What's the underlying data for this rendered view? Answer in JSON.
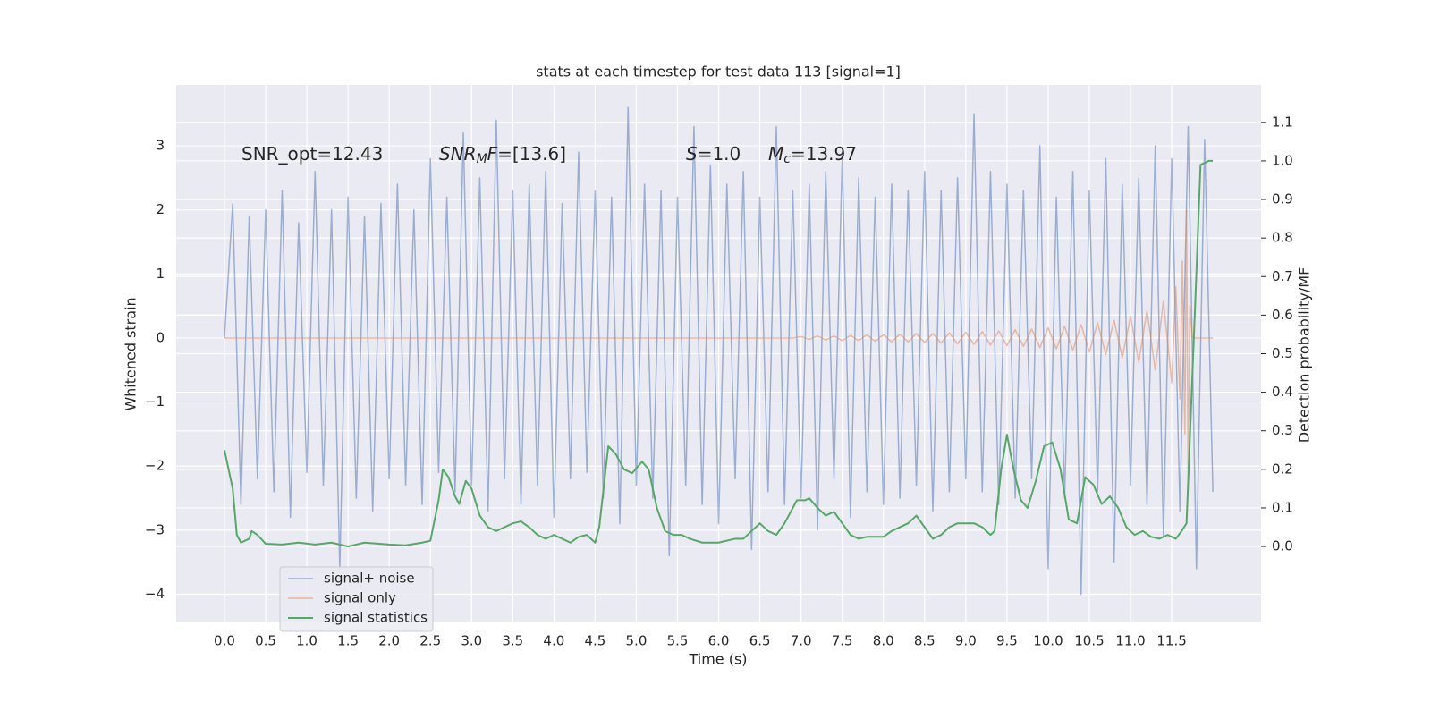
{
  "chart_data": {
    "type": "line",
    "title": "stats at each timestep for test data 113 [signal=1]",
    "xlabel": "Time (s)",
    "ylabel": "Whitened strain",
    "y2label": "Detection probability/MF",
    "xlim": [
      -0.586,
      12.585
    ],
    "ylim": [
      -4.44,
      3.95
    ],
    "y2lim": [
      -0.197,
      1.197
    ],
    "xticks": [
      {
        "value": 0,
        "label": "0.0"
      },
      0.5,
      {
        "value": 1,
        "label": "1.0"
      },
      1.5,
      {
        "value": 2,
        "label": "2.0"
      },
      2.5,
      {
        "value": 3,
        "label": "3.0"
      },
      3.5,
      {
        "value": 4,
        "label": "4.0"
      },
      4.5,
      {
        "value": 5,
        "label": "5.0"
      },
      5.5,
      {
        "value": 6,
        "label": "6.0"
      },
      6.5,
      {
        "value": 7,
        "label": "7.0"
      },
      7.5,
      {
        "value": 8,
        "label": "8.0"
      },
      8.5,
      {
        "value": 9,
        "label": "9.0"
      },
      9.5,
      {
        "value": 10,
        "label": "10.0"
      },
      10.5,
      {
        "value": 11,
        "label": "11.0"
      },
      11.5
    ],
    "yticks": [
      {
        "value": -4,
        "label": "−4"
      },
      {
        "value": -3,
        "label": "−3"
      },
      {
        "value": -2,
        "label": "−2"
      },
      {
        "value": -1,
        "label": "−1"
      },
      0,
      1,
      2,
      3
    ],
    "y2ticks": [
      {
        "value": 0,
        "label": "0.0"
      },
      0.1,
      0.2,
      0.3,
      0.4,
      0.5,
      0.6,
      0.7,
      0.8,
      0.9,
      {
        "value": 1,
        "label": "1.0"
      },
      1.1
    ],
    "grid": true,
    "legend": "lower left",
    "annotations": [
      [
        "SNR_opt=12.43"
      ],
      [
        "SNR",
        "M",
        "F",
        "=[13.6]"
      ],
      [
        "S",
        "=1.0"
      ],
      [
        "M",
        "c",
        "=13.97"
      ]
    ],
    "series": [
      {
        "name": "signal+ noise",
        "color": "#4c72b0",
        "alpha": 0.5,
        "x": [
          0,
          0.1,
          0.2,
          0.3,
          0.4,
          0.5,
          0.6,
          0.7,
          0.8,
          0.9,
          1,
          1.1,
          1.2,
          1.3,
          1.4,
          1.5,
          1.6,
          1.7,
          1.8,
          1.9,
          2,
          2.1,
          2.2,
          2.3,
          2.4,
          2.5,
          2.6,
          2.7,
          2.8,
          2.9,
          3,
          3.1,
          3.2,
          3.3,
          3.4,
          3.5,
          3.6,
          3.7,
          3.8,
          3.9,
          4,
          4.1,
          4.2,
          4.3,
          4.4,
          4.5,
          4.6,
          4.7,
          4.8,
          4.9,
          5,
          5.1,
          5.2,
          5.3,
          5.4,
          5.5,
          5.6,
          5.7,
          5.8,
          5.9,
          6,
          6.1,
          6.2,
          6.3,
          6.4,
          6.5,
          6.6,
          6.7,
          6.8,
          6.9,
          7,
          7.1,
          7.2,
          7.3,
          7.4,
          7.5,
          7.6,
          7.7,
          7.8,
          7.9,
          8,
          8.1,
          8.2,
          8.3,
          8.4,
          8.5,
          8.6,
          8.7,
          8.8,
          8.9,
          9,
          9.1,
          9.2,
          9.3,
          9.4,
          9.5,
          9.6,
          9.7,
          9.8,
          9.9,
          10,
          10.1,
          10.2,
          10.3,
          10.4,
          10.5,
          10.6,
          10.7,
          10.8,
          10.9,
          11,
          11.1,
          11.2,
          11.3,
          11.4,
          11.5,
          11.6,
          11.7,
          11.8,
          11.9,
          12
        ],
        "values": [
          0,
          2.1,
          -2.6,
          1.9,
          -2.2,
          2.0,
          -2.4,
          2.3,
          -2.8,
          1.8,
          -2.1,
          2.6,
          -2.3,
          2.0,
          -3.6,
          2.2,
          -2.5,
          1.9,
          -2.7,
          2.1,
          -2.2,
          2.4,
          -2.3,
          2.0,
          -2.6,
          2.8,
          -2.1,
          2.2,
          -2.4,
          3.2,
          -2.3,
          2.5,
          -2.7,
          3.4,
          -2.2,
          2.3,
          -2.6,
          2.4,
          -2.3,
          2.6,
          -2.8,
          2.1,
          -2.2,
          2.9,
          -2.1,
          2.3,
          -2.5,
          2.2,
          -2.9,
          3.6,
          -2.3,
          2.4,
          -2.5,
          2.3,
          -3.4,
          2.2,
          -2.3,
          3.3,
          -2.6,
          2.7,
          -2.9,
          2.4,
          -2.2,
          2.6,
          -3.3,
          2.2,
          -2.4,
          3.3,
          -2.6,
          2.3,
          -2.5,
          2.4,
          -3.0,
          2.6,
          -2.2,
          2.8,
          -2.8,
          2.5,
          -2.4,
          2.2,
          -2.6,
          2.4,
          -2.5,
          2.3,
          -2.3,
          2.6,
          -2.7,
          2.3,
          -2.4,
          2.5,
          -2.2,
          3.5,
          -2.4,
          2.6,
          -2.6,
          2.4,
          -2.5,
          2.3,
          -2.2,
          3.0,
          -3.6,
          2.2,
          -2.5,
          2.6,
          -4.0,
          2.3,
          -2.4,
          2.8,
          -3.5,
          2.4,
          -2.3,
          2.5,
          -2.6,
          3.0,
          -3.1,
          2.8,
          -2.7,
          3.3,
          -3.6,
          3.1,
          -2.4
        ]
      },
      {
        "name": "signal only",
        "color": "#dd8452",
        "alpha": 0.5,
        "x": [
          0,
          6.9,
          7,
          7.1,
          7.2,
          7.3,
          7.4,
          7.5,
          7.6,
          7.7,
          7.8,
          7.9,
          8,
          8.1,
          8.2,
          8.3,
          8.4,
          8.5,
          8.6,
          8.7,
          8.8,
          8.9,
          9,
          9.1,
          9.2,
          9.3,
          9.4,
          9.5,
          9.6,
          9.7,
          9.8,
          9.9,
          10,
          10.1,
          10.2,
          10.3,
          10.4,
          10.5,
          10.6,
          10.7,
          10.8,
          10.9,
          11,
          11.1,
          11.2,
          11.3,
          11.4,
          11.5,
          11.55,
          11.6,
          11.63,
          11.66,
          11.68,
          11.7,
          11.72,
          11.75,
          12
        ],
        "values": [
          0,
          0,
          0.02,
          -0.02,
          0.03,
          -0.03,
          0.03,
          -0.04,
          0.04,
          -0.04,
          0.05,
          -0.05,
          0.05,
          -0.06,
          0.06,
          -0.06,
          0.07,
          -0.07,
          0.07,
          -0.08,
          0.08,
          -0.09,
          0.09,
          -0.1,
          0.1,
          -0.11,
          0.11,
          -0.12,
          0.13,
          -0.13,
          0.14,
          -0.15,
          0.16,
          -0.17,
          0.18,
          -0.19,
          0.21,
          -0.22,
          0.24,
          -0.26,
          0.28,
          -0.31,
          0.34,
          -0.38,
          0.43,
          -0.5,
          0.58,
          -0.7,
          0.8,
          -0.95,
          1.2,
          -1.5,
          2.0,
          -2.3,
          0.5,
          0,
          0
        ]
      },
      {
        "name": "signal statistics",
        "color": "#55a868",
        "alpha": 1,
        "axis": "y2",
        "x": [
          0,
          0.1,
          0.15,
          0.2,
          0.3,
          0.33,
          0.4,
          0.5,
          0.7,
          0.9,
          1.1,
          1.3,
          1.5,
          1.7,
          2.0,
          2.2,
          2.4,
          2.5,
          2.6,
          2.65,
          2.72,
          2.8,
          2.85,
          2.93,
          3.0,
          3.1,
          3.2,
          3.3,
          3.4,
          3.5,
          3.6,
          3.7,
          3.8,
          3.9,
          4.0,
          4.1,
          4.2,
          4.3,
          4.4,
          4.5,
          4.55,
          4.66,
          4.75,
          4.85,
          4.95,
          5.07,
          5.15,
          5.25,
          5.35,
          5.45,
          5.55,
          5.65,
          5.8,
          6.0,
          6.2,
          6.3,
          6.4,
          6.5,
          6.6,
          6.7,
          6.8,
          6.9,
          6.95,
          7.05,
          7.1,
          7.2,
          7.3,
          7.4,
          7.5,
          7.6,
          7.7,
          7.8,
          8.0,
          8.1,
          8.3,
          8.4,
          8.5,
          8.6,
          8.7,
          8.8,
          8.9,
          9.1,
          9.2,
          9.3,
          9.35,
          9.43,
          9.5,
          9.58,
          9.67,
          9.75,
          9.85,
          9.95,
          10.05,
          10.15,
          10.25,
          10.35,
          10.45,
          10.55,
          10.65,
          10.75,
          10.85,
          10.95,
          11.05,
          11.15,
          11.25,
          11.35,
          11.45,
          11.55,
          11.62,
          11.68,
          11.78,
          11.85,
          11.95,
          12.0
        ],
        "values": [
          0.25,
          0.15,
          0.03,
          0.01,
          0.02,
          0.04,
          0.03,
          0.007,
          0.005,
          0.01,
          0.005,
          0.01,
          0,
          0.01,
          0.005,
          0.003,
          0.01,
          0.015,
          0.12,
          0.2,
          0.18,
          0.13,
          0.11,
          0.17,
          0.15,
          0.08,
          0.05,
          0.04,
          0.05,
          0.06,
          0.065,
          0.05,
          0.03,
          0.02,
          0.03,
          0.02,
          0.01,
          0.025,
          0.03,
          0.01,
          0.05,
          0.26,
          0.24,
          0.2,
          0.19,
          0.22,
          0.2,
          0.1,
          0.04,
          0.03,
          0.03,
          0.02,
          0.01,
          0.01,
          0.02,
          0.02,
          0.04,
          0.06,
          0.04,
          0.03,
          0.06,
          0.1,
          0.12,
          0.12,
          0.125,
          0.1,
          0.08,
          0.09,
          0.06,
          0.03,
          0.02,
          0.025,
          0.025,
          0.04,
          0.06,
          0.08,
          0.05,
          0.02,
          0.03,
          0.05,
          0.06,
          0.06,
          0.05,
          0.03,
          0.04,
          0.2,
          0.29,
          0.2,
          0.12,
          0.1,
          0.17,
          0.26,
          0.27,
          0.2,
          0.07,
          0.06,
          0.18,
          0.16,
          0.11,
          0.13,
          0.1,
          0.05,
          0.03,
          0.04,
          0.025,
          0.02,
          0.03,
          0.02,
          0.04,
          0.06,
          0.6,
          0.99,
          1.0,
          1.0
        ]
      }
    ]
  }
}
